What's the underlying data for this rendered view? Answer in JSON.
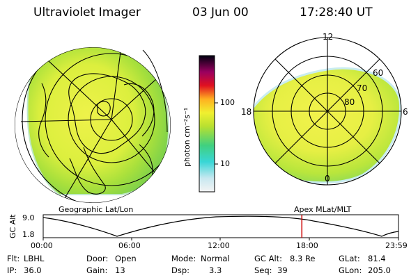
{
  "header": {
    "title": "Ultraviolet Imager",
    "date": "03 Jun 00",
    "time": "17:28:40 UT"
  },
  "colorbar": {
    "unit_label": "photon cm⁻²s⁻¹",
    "ticks": [
      "100",
      "10"
    ]
  },
  "left_panel": {
    "caption": "Geographic Lat/Lon"
  },
  "right_panel": {
    "caption": "Apex MLat/MLT",
    "mlt_labels": [
      "12",
      "18",
      "6",
      "0"
    ],
    "mlat_labels": [
      "60",
      "70",
      "80"
    ]
  },
  "altitude_plot": {
    "ylabel": "GC Alt",
    "yticks": [
      "9.0",
      "1.8"
    ],
    "xticks": [
      "00:00",
      "06:00",
      "12:00",
      "18:00",
      "23:59"
    ],
    "current_time_fraction": 0.728,
    "marker_color": "#cc0000"
  },
  "info": {
    "flt_label": "Flt:",
    "flt_value": "LBHL",
    "ip_label": "IP:",
    "ip_value": "36.0",
    "door_label": "Door:",
    "door_value": "Open",
    "gain_label": "Gain:",
    "gain_value": "13",
    "mode_label": "Mode:",
    "mode_value": "Normal",
    "dsp_label": "Dsp:",
    "dsp_value": "3.3",
    "gcalt_label": "GC Alt:",
    "gcalt_value": "8.3 Re",
    "seq_label": "Seq:",
    "seq_value": "39",
    "glat_label": "GLat:",
    "glat_value": "81.4",
    "glon_label": "GLon:",
    "glon_value": "205.0"
  }
}
